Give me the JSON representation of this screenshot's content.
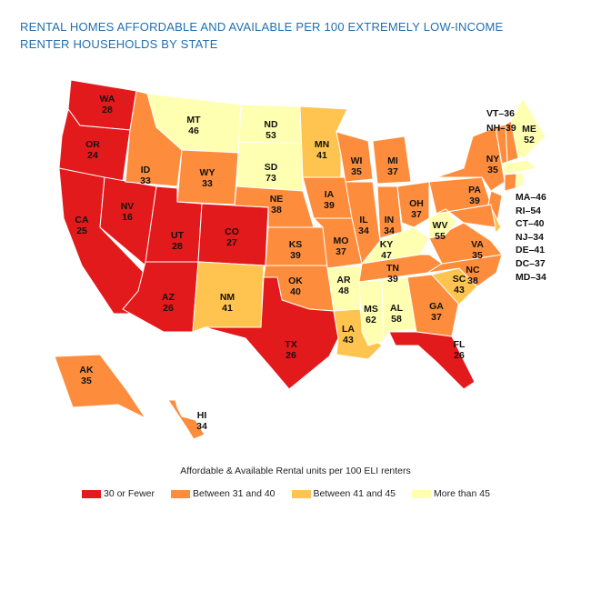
{
  "title": "RENTAL HOMES AFFORDABLE AND AVAILABLE PER 100 EXTREMELY LOW-INCOME RENTER HOUSEHOLDS BY STATE",
  "colors": {
    "30 or Fewer": "#e31a1c",
    "Between 31 and 40": "#fd8d3c",
    "Between 41 and 45": "#fec44f",
    "More than 45": "#ffffb2"
  },
  "states": [
    {
      "abbr": "WA",
      "value": 28
    },
    {
      "abbr": "OR",
      "value": 24
    },
    {
      "abbr": "CA",
      "value": 25
    },
    {
      "abbr": "NV",
      "value": 16
    },
    {
      "abbr": "ID",
      "value": 33
    },
    {
      "abbr": "MT",
      "value": 46
    },
    {
      "abbr": "WY",
      "value": 33
    },
    {
      "abbr": "UT",
      "value": 28
    },
    {
      "abbr": "CO",
      "value": 27
    },
    {
      "abbr": "AZ",
      "value": 26
    },
    {
      "abbr": "NM",
      "value": 41
    },
    {
      "abbr": "ND",
      "value": 53
    },
    {
      "abbr": "SD",
      "value": 73
    },
    {
      "abbr": "NE",
      "value": 38
    },
    {
      "abbr": "KS",
      "value": 39
    },
    {
      "abbr": "OK",
      "value": 40
    },
    {
      "abbr": "TX",
      "value": 26
    },
    {
      "abbr": "MN",
      "value": 41
    },
    {
      "abbr": "IA",
      "value": 39
    },
    {
      "abbr": "MO",
      "value": 37
    },
    {
      "abbr": "AR",
      "value": 48
    },
    {
      "abbr": "LA",
      "value": 43
    },
    {
      "abbr": "WI",
      "value": 35
    },
    {
      "abbr": "IL",
      "value": 34
    },
    {
      "abbr": "MI",
      "value": 37
    },
    {
      "abbr": "IN",
      "value": 34
    },
    {
      "abbr": "OH",
      "value": 37
    },
    {
      "abbr": "KY",
      "value": 47
    },
    {
      "abbr": "TN",
      "value": 39
    },
    {
      "abbr": "MS",
      "value": 62
    },
    {
      "abbr": "AL",
      "value": 58
    },
    {
      "abbr": "GA",
      "value": 37
    },
    {
      "abbr": "FL",
      "value": 26
    },
    {
      "abbr": "SC",
      "value": 43
    },
    {
      "abbr": "NC",
      "value": 38
    },
    {
      "abbr": "VA",
      "value": 35
    },
    {
      "abbr": "WV",
      "value": 55
    },
    {
      "abbr": "PA",
      "value": 39
    },
    {
      "abbr": "NY",
      "value": 35
    },
    {
      "abbr": "ME",
      "value": 52
    },
    {
      "abbr": "AK",
      "value": 35
    },
    {
      "abbr": "HI",
      "value": 34
    }
  ],
  "small_states": [
    {
      "abbr": "VT",
      "value": 36
    },
    {
      "abbr": "NH",
      "value": 39
    },
    {
      "abbr": "MA",
      "value": 46
    },
    {
      "abbr": "RI",
      "value": 54
    },
    {
      "abbr": "CT",
      "value": 40
    },
    {
      "abbr": "NJ",
      "value": 34
    },
    {
      "abbr": "DE",
      "value": 41
    },
    {
      "abbr": "DC",
      "value": 37
    },
    {
      "abbr": "MD",
      "value": 34
    }
  ],
  "small_labels": {
    "top": [
      "VT–36",
      "NH–39"
    ],
    "right": [
      "MA–46",
      "RI–54",
      "CT–40",
      "NJ–34",
      "DE–41",
      "DC–37",
      "MD–34"
    ]
  },
  "legend": {
    "title": "Affordable & Available Rental units per 100 ELI renters",
    "items": [
      {
        "label": "30 or Fewer",
        "color": "#e31a1c"
      },
      {
        "label": "Between 31 and 40",
        "color": "#fd8d3c"
      },
      {
        "label": "Between 41 and 45",
        "color": "#fec44f"
      },
      {
        "label": "More than 45",
        "color": "#ffffb2"
      }
    ]
  }
}
